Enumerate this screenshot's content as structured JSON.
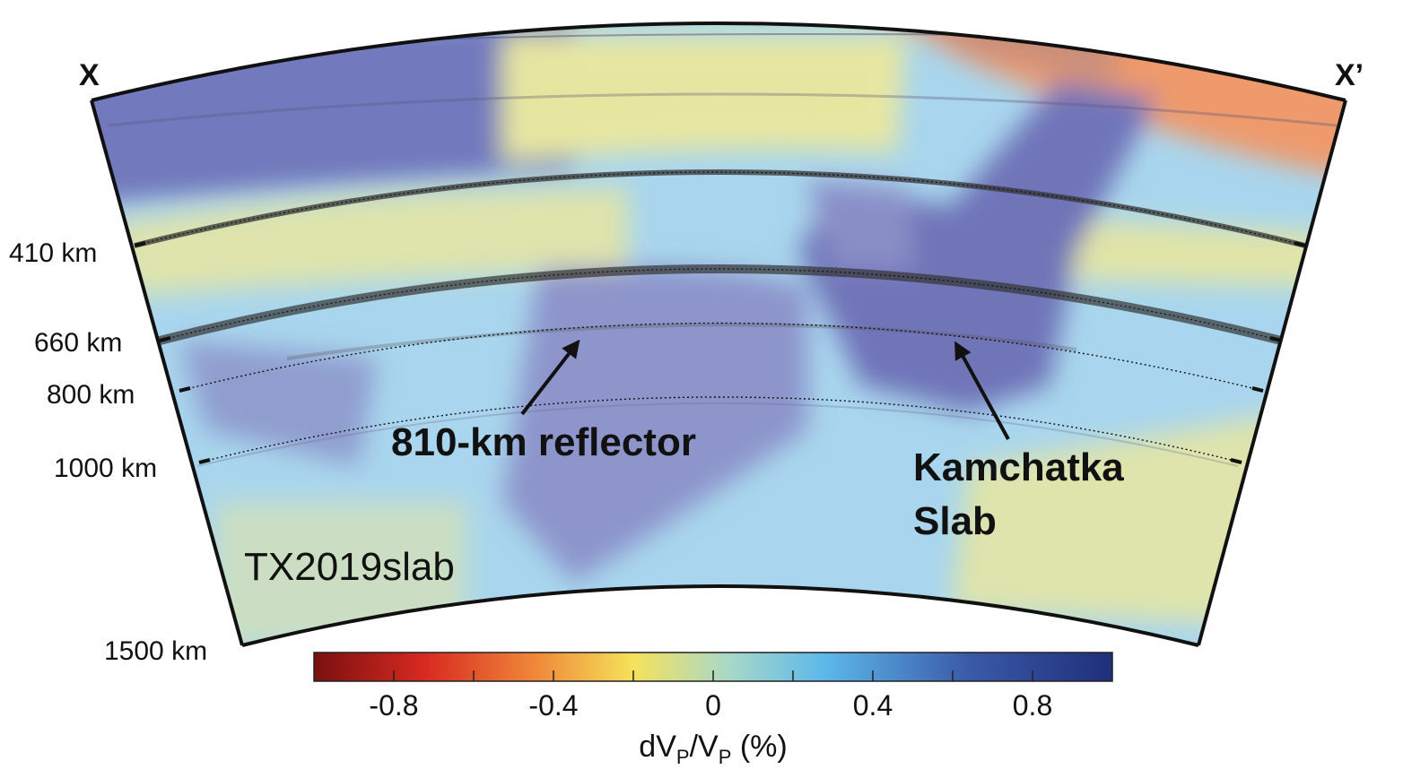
{
  "section": {
    "left_label": "X",
    "right_label": "X’",
    "model_label": "TX2019slab",
    "depth_labels": [
      "410 km",
      "660 km",
      "800 km",
      "1000 km",
      "1500 km"
    ],
    "depth_values_km": [
      410,
      660,
      800,
      1000,
      1500
    ],
    "annotations": {
      "reflector": "810-km reflector",
      "slab_line1": "Kamchatka",
      "slab_line2": "Slab"
    }
  },
  "colorbar": {
    "min": -1.0,
    "max": 1.0,
    "tick_values": [
      -0.8,
      -0.4,
      0,
      0.4,
      0.8
    ],
    "tick_labels": [
      "-0.8",
      "-0.4",
      "0",
      "0.4",
      "0.8"
    ],
    "label_main": "dV",
    "label_sub": "P",
    "label_div": "/V",
    "label_sub2": "P",
    "label_unit": " (%)",
    "colors": [
      "#7a1010",
      "#d82a20",
      "#f08a3a",
      "#f5e25a",
      "#a8d8c8",
      "#5cb8ea",
      "#3a5aa8",
      "#1f2f7a"
    ]
  },
  "palette": {
    "fast_blue": "#6f74b8",
    "light_blue": "#a9d6ee",
    "pale_yellow": "#e7e6a0",
    "orange": "#ee9a6c",
    "brick": "#c98f7a"
  }
}
